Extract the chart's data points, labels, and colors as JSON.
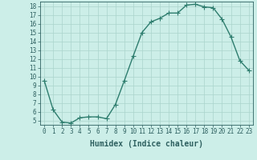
{
  "xlabel": "Humidex (Indice chaleur)",
  "x": [
    0,
    1,
    2,
    3,
    4,
    5,
    6,
    7,
    8,
    9,
    10,
    11,
    12,
    13,
    14,
    15,
    16,
    17,
    18,
    19,
    20,
    21,
    22,
    23
  ],
  "y": [
    9.5,
    6.2,
    4.8,
    4.7,
    5.3,
    5.4,
    5.4,
    5.2,
    6.8,
    9.5,
    12.3,
    15.0,
    16.2,
    16.6,
    17.2,
    17.2,
    18.1,
    18.2,
    17.9,
    17.8,
    16.5,
    14.5,
    11.8,
    10.7
  ],
  "line_color": "#2e7d6e",
  "marker_color": "#2e7d6e",
  "bg_color": "#cceee8",
  "grid_color": "#aad4cc",
  "tick_label_color": "#2e6060",
  "axis_color": "#2e6060",
  "xlim": [
    -0.5,
    23.5
  ],
  "ylim": [
    4.5,
    18.5
  ],
  "yticks": [
    5,
    6,
    7,
    8,
    9,
    10,
    11,
    12,
    13,
    14,
    15,
    16,
    17,
    18
  ],
  "xticks": [
    0,
    1,
    2,
    3,
    4,
    5,
    6,
    7,
    8,
    9,
    10,
    11,
    12,
    13,
    14,
    15,
    16,
    17,
    18,
    19,
    20,
    21,
    22,
    23
  ],
  "fontsize_ticks": 5.5,
  "fontsize_xlabel": 7,
  "marker_size": 2,
  "line_width": 1.0
}
